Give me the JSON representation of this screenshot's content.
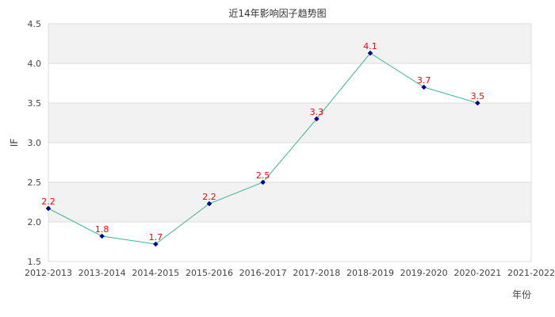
{
  "chart_data": {
    "type": "line",
    "title": "近14年影响因子趋势图",
    "xlabel": "年份",
    "ylabel": "IF",
    "categories": [
      "2012-2013",
      "2013-2014",
      "2014-2015",
      "2015-2016",
      "2016-2017",
      "2017-2018",
      "2018-2019",
      "2019-2020",
      "2020-2021",
      "2021-2022"
    ],
    "series": [
      {
        "name": "IF",
        "values": [
          2.17,
          1.82,
          1.72,
          2.23,
          2.5,
          3.3,
          4.13,
          3.7,
          3.5,
          null
        ],
        "labels": [
          "2.2",
          "1.8",
          "1.7",
          "2.2",
          "2.5",
          "3.3",
          "4.1",
          "3.7",
          "3.5",
          null
        ]
      }
    ],
    "ylim": [
      1.5,
      4.5
    ],
    "yticks": [
      "1.5",
      "2.0",
      "2.5",
      "3.0",
      "3.5",
      "4.0",
      "4.5"
    ],
    "grid": true,
    "legend": "none",
    "colors": {
      "line": "#3cb594",
      "marker": "#0000aa",
      "data_label": "#ff0000",
      "band": "#f2f2f2",
      "grid": "#dddddd"
    }
  }
}
